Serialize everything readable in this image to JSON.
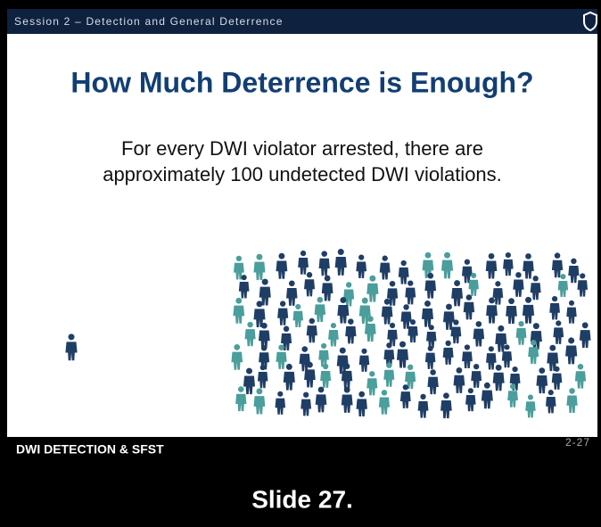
{
  "header": {
    "session": "Session 2 – Detection and General Deterrence"
  },
  "slide": {
    "title": "How Much Deterrence is Enough?",
    "body": [
      "For every DWI violator arrested, there are",
      "approximately 100 undetected DWI violations."
    ]
  },
  "footer": {
    "left": "DWI DETECTION & SFST",
    "page": "2-27"
  },
  "caption": "Slide 27."
}
